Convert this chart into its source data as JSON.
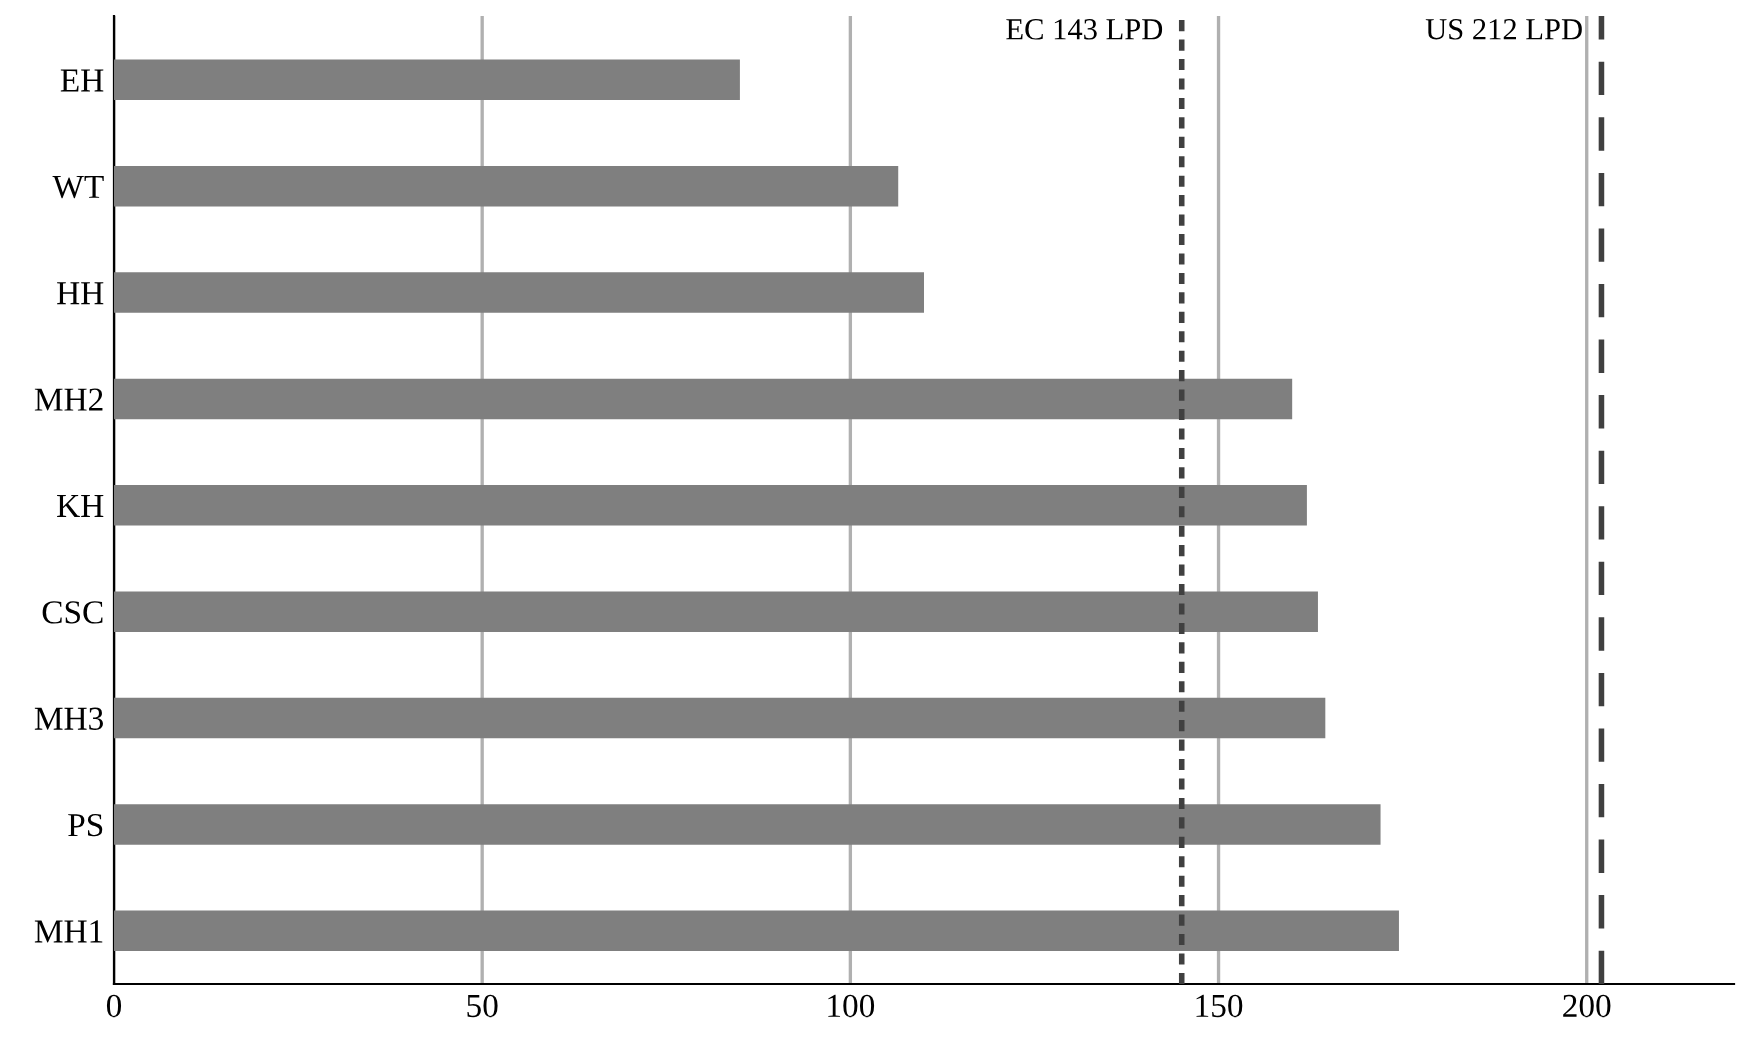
{
  "chart_data": {
    "type": "bar",
    "orientation": "horizontal",
    "categories": [
      "EH",
      "WT",
      "HH",
      "MH2",
      "KH",
      "CSC",
      "MH3",
      "PS",
      "MH1"
    ],
    "values": [
      85,
      106.5,
      110,
      160,
      162,
      163.5,
      164.5,
      172,
      174.5
    ],
    "color": "#7f7f7f",
    "xlim": [
      0,
      220
    ],
    "xticks": [
      0,
      50,
      100,
      150,
      200
    ],
    "grid": "x",
    "ref_lines": [
      {
        "axis": "x",
        "value": 145,
        "label": "EC 143 LPD",
        "line_style": "dotted",
        "color": "#404040"
      },
      {
        "axis": "x",
        "value": 202,
        "label": "US 212 LPD",
        "line_style": "dashed",
        "color": "#404040"
      }
    ]
  }
}
